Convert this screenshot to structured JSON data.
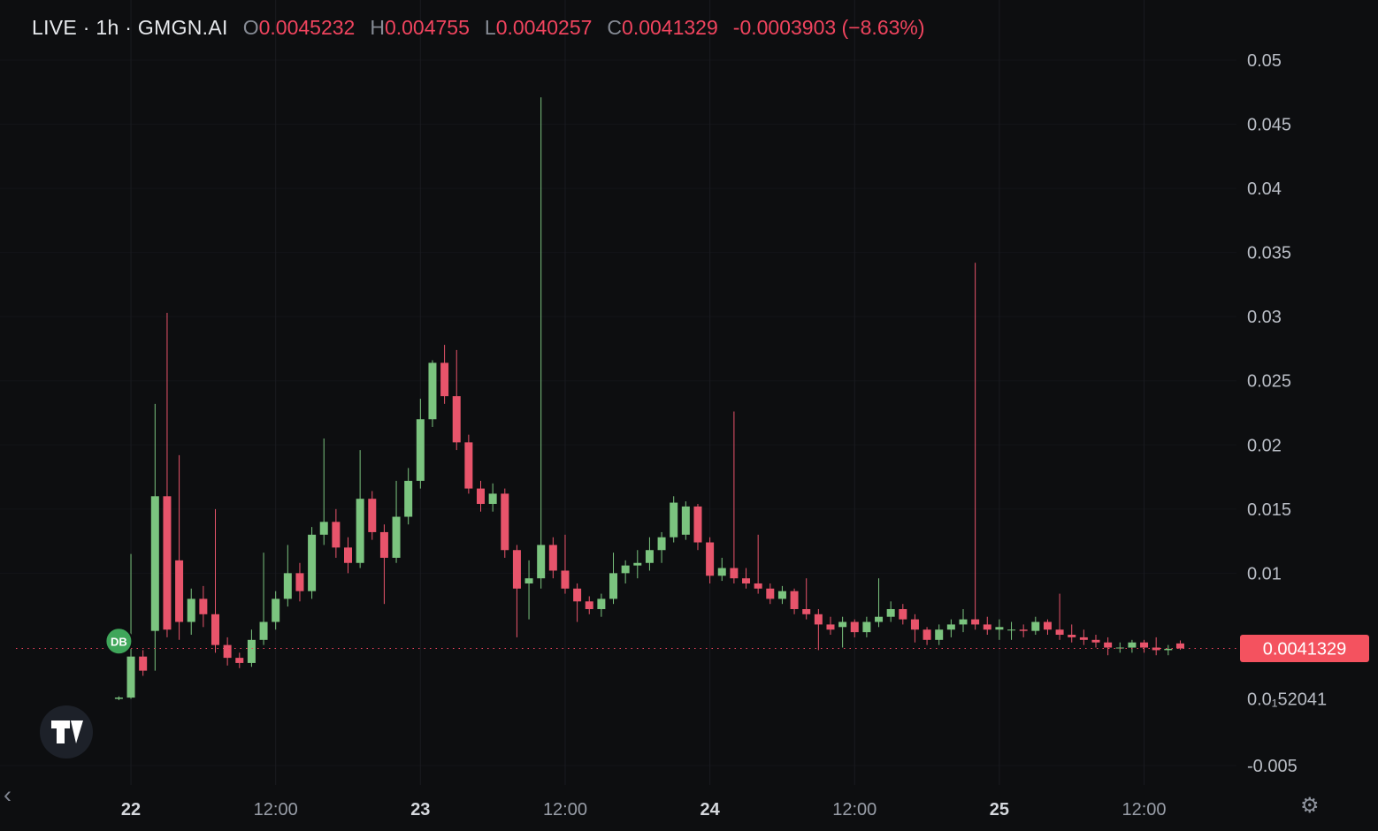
{
  "header": {
    "title": "LIVE · 1h · GMGN.AI",
    "ohlc": [
      {
        "key": "O",
        "value": "0.0045232"
      },
      {
        "key": "H",
        "value": "0.004755"
      },
      {
        "key": "L",
        "value": "0.0040257"
      },
      {
        "key": "C",
        "value": "0.0041329"
      }
    ],
    "change": "-0.0003903 (−8.63%)"
  },
  "colors": {
    "background": "#0d0e10",
    "up": "#7bc47f",
    "down": "#e8546b",
    "accent_red": "#f0445e",
    "badge_bg": "#f4525f",
    "price_line": "#f0445e",
    "marker": "#3fa65a"
  },
  "chart_data": {
    "type": "candlestick",
    "symbol": "GMGN.AI",
    "interval": "1h",
    "title": "LIVE · 1h · GMGN.AI",
    "ylim": [
      -0.005,
      0.05
    ],
    "grid": true,
    "value_unit": 0.0001,
    "price_axis_ticks": [
      {
        "value": 0.05,
        "label": "0.05"
      },
      {
        "value": 0.045,
        "label": "0.045"
      },
      {
        "value": 0.04,
        "label": "0.04"
      },
      {
        "value": 0.035,
        "label": "0.035"
      },
      {
        "value": 0.03,
        "label": "0.03"
      },
      {
        "value": 0.025,
        "label": "0.025"
      },
      {
        "value": 0.02,
        "label": "0.02"
      },
      {
        "value": 0.015,
        "label": "0.015"
      },
      {
        "value": 0.01,
        "label": "0.01"
      },
      {
        "value": -0.005,
        "label": "-0.005"
      }
    ],
    "zero_label": {
      "value": 0.0002,
      "label": "0.0₁52041"
    },
    "time_ticks": [
      {
        "index": 1,
        "label": "22",
        "major": true
      },
      {
        "index": 13,
        "label": "12:00",
        "major": false
      },
      {
        "index": 25,
        "label": "23",
        "major": true
      },
      {
        "index": 37,
        "label": "12:00",
        "major": false
      },
      {
        "index": 49,
        "label": "24",
        "major": true
      },
      {
        "index": 61,
        "label": "12:00",
        "major": false
      },
      {
        "index": 73,
        "label": "25",
        "major": true
      },
      {
        "index": 85,
        "label": "12:00",
        "major": false
      }
    ],
    "candles": [
      [
        2,
        4,
        1,
        3
      ],
      [
        3,
        115,
        2,
        35
      ],
      [
        35,
        40,
        20,
        24
      ],
      [
        55,
        232,
        24,
        160
      ],
      [
        160,
        303,
        50,
        56
      ],
      [
        110,
        192,
        48,
        62
      ],
      [
        62,
        88,
        52,
        80
      ],
      [
        80,
        90,
        58,
        68
      ],
      [
        68,
        150,
        38,
        44
      ],
      [
        44,
        50,
        28,
        34
      ],
      [
        34,
        38,
        26,
        30
      ],
      [
        30,
        56,
        27,
        48
      ],
      [
        48,
        116,
        44,
        62
      ],
      [
        62,
        86,
        56,
        80
      ],
      [
        80,
        122,
        74,
        100
      ],
      [
        100,
        108,
        78,
        86
      ],
      [
        86,
        136,
        80,
        130
      ],
      [
        130,
        205,
        122,
        140
      ],
      [
        140,
        150,
        112,
        120
      ],
      [
        120,
        128,
        100,
        108
      ],
      [
        108,
        196,
        104,
        158
      ],
      [
        158,
        164,
        126,
        132
      ],
      [
        132,
        138,
        76,
        112
      ],
      [
        112,
        172,
        108,
        144
      ],
      [
        144,
        182,
        138,
        172
      ],
      [
        172,
        236,
        166,
        220
      ],
      [
        220,
        266,
        214,
        264
      ],
      [
        264,
        278,
        232,
        238
      ],
      [
        238,
        274,
        196,
        202
      ],
      [
        202,
        208,
        162,
        166
      ],
      [
        166,
        172,
        148,
        154
      ],
      [
        154,
        170,
        148,
        162
      ],
      [
        162,
        166,
        112,
        118
      ],
      [
        118,
        122,
        50,
        88
      ],
      [
        92,
        110,
        64,
        96
      ],
      [
        96,
        471,
        88,
        122
      ],
      [
        122,
        128,
        96,
        102
      ],
      [
        102,
        130,
        84,
        88
      ],
      [
        88,
        92,
        62,
        78
      ],
      [
        78,
        82,
        68,
        72
      ],
      [
        72,
        84,
        66,
        80
      ],
      [
        80,
        116,
        76,
        100
      ],
      [
        100,
        110,
        92,
        106
      ],
      [
        106,
        118,
        96,
        108
      ],
      [
        108,
        128,
        102,
        118
      ],
      [
        118,
        132,
        108,
        128
      ],
      [
        128,
        160,
        124,
        155
      ],
      [
        130,
        156,
        126,
        152
      ],
      [
        152,
        154,
        118,
        124
      ],
      [
        124,
        128,
        92,
        98
      ],
      [
        98,
        112,
        94,
        104
      ],
      [
        104,
        226,
        92,
        96
      ],
      [
        96,
        104,
        88,
        92
      ],
      [
        92,
        130,
        84,
        88
      ],
      [
        88,
        92,
        76,
        80
      ],
      [
        80,
        90,
        76,
        86
      ],
      [
        86,
        88,
        68,
        72
      ],
      [
        72,
        96,
        64,
        68
      ],
      [
        68,
        72,
        40,
        60
      ],
      [
        60,
        66,
        52,
        56
      ],
      [
        58,
        66,
        42,
        62
      ],
      [
        62,
        64,
        50,
        54
      ],
      [
        54,
        66,
        50,
        62
      ],
      [
        62,
        96,
        58,
        66
      ],
      [
        66,
        78,
        62,
        72
      ],
      [
        72,
        76,
        60,
        64
      ],
      [
        64,
        68,
        46,
        56
      ],
      [
        56,
        58,
        44,
        48
      ],
      [
        48,
        60,
        44,
        56
      ],
      [
        56,
        64,
        50,
        60
      ],
      [
        60,
        72,
        54,
        64
      ],
      [
        64,
        342,
        56,
        60
      ],
      [
        60,
        66,
        52,
        56
      ],
      [
        56,
        64,
        48,
        58
      ],
      [
        56,
        62,
        48,
        56
      ],
      [
        56,
        60,
        50,
        55
      ],
      [
        55,
        66,
        52,
        62
      ],
      [
        62,
        64,
        52,
        56
      ],
      [
        56,
        84,
        48,
        52
      ],
      [
        52,
        60,
        46,
        50
      ],
      [
        50,
        56,
        44,
        48
      ],
      [
        48,
        52,
        42,
        46
      ],
      [
        46,
        50,
        36,
        42
      ],
      [
        42,
        46,
        38,
        42
      ],
      [
        42,
        48,
        38,
        46
      ],
      [
        46,
        48,
        38,
        42
      ],
      [
        42,
        50,
        36,
        40
      ],
      [
        40,
        44,
        36,
        41
      ],
      [
        45.232,
        47.55,
        40.257,
        41.329
      ]
    ],
    "price_line": {
      "value": 0.0041329,
      "label": "0.0041329"
    },
    "marker": {
      "index": 0,
      "value": 0.0047,
      "label": "DB"
    }
  },
  "footer": {
    "chevron": "‹",
    "gear_icon": "⚙"
  }
}
